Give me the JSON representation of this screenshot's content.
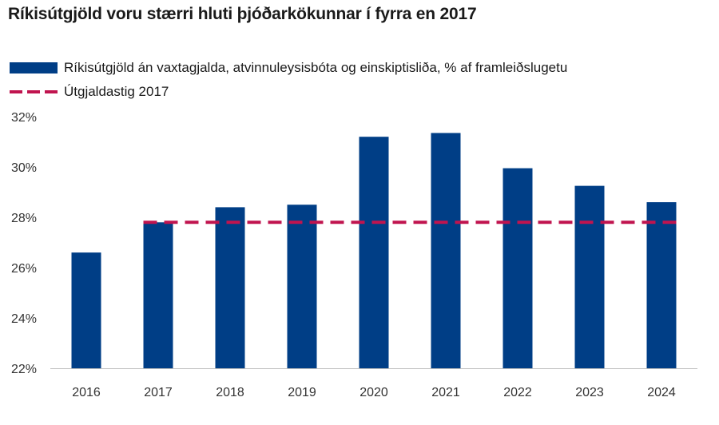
{
  "chart_data": {
    "type": "bar",
    "title": "Ríkisútgjöld voru stærri hluti þjóðarkökunnar í fyrra en 2017",
    "categories": [
      "2016",
      "2017",
      "2018",
      "2019",
      "2020",
      "2021",
      "2022",
      "2023",
      "2024"
    ],
    "series": [
      {
        "name": "Ríkisútgjöld án vaxtagjalda, atvinnuleysisbóta og einskiptisliða, % af framleiðslugetu",
        "type": "bar",
        "color": "#003e86",
        "values": [
          26.6,
          27.8,
          28.4,
          28.5,
          31.2,
          31.35,
          29.95,
          29.25,
          28.6
        ]
      },
      {
        "name": "Útgjaldastig 2017",
        "type": "dashed-line",
        "color": "#c0144f",
        "x_range": [
          "2017",
          "2024"
        ],
        "value": 27.8
      }
    ],
    "ylim": [
      22,
      32
    ],
    "yticks": [
      22,
      24,
      26,
      28,
      30,
      32
    ],
    "ytick_labels": [
      "22%",
      "24%",
      "26%",
      "28%",
      "30%",
      "32%"
    ],
    "xlabel": "",
    "ylabel": "",
    "grid": false,
    "legend_position": "top-left"
  }
}
